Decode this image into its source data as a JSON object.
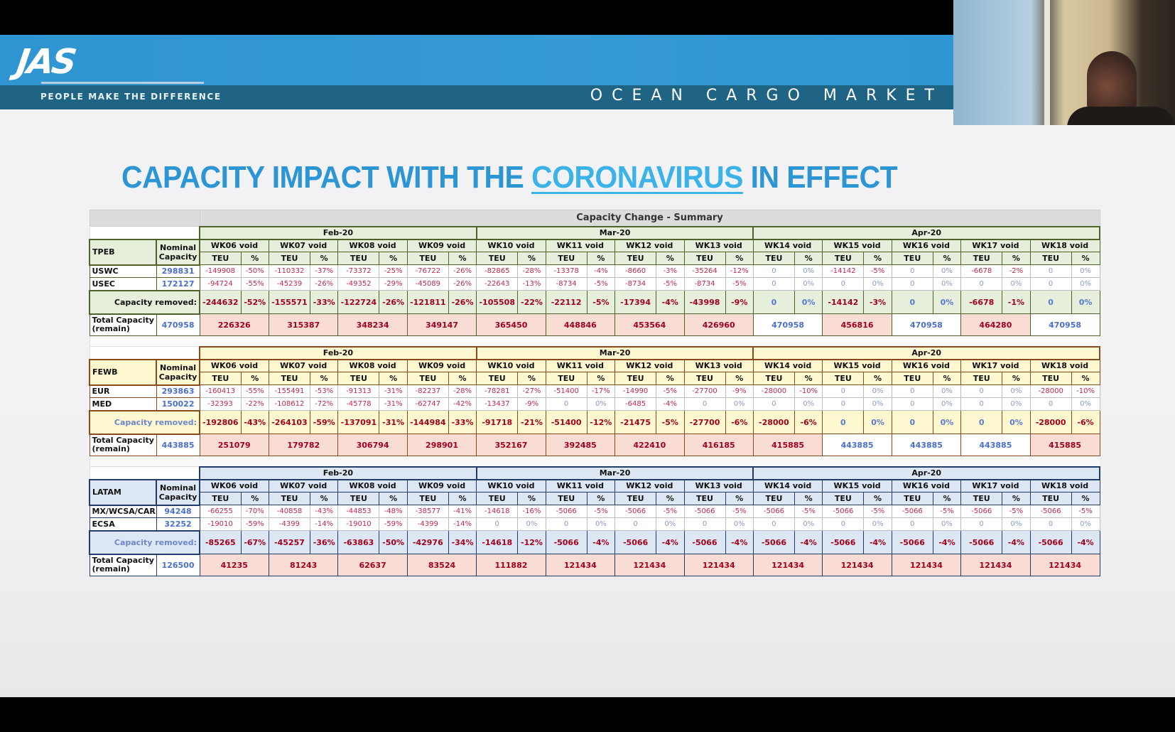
{
  "header": {
    "logo": "JAS",
    "tagline": "PEOPLE MAKE THE DIFFERENCE",
    "section_title": "OCEAN CARGO MARKET"
  },
  "slide": {
    "title_pre": "CAPACITY IMPACT WITH THE ",
    "title_highlight": "CORONAVIRUS",
    "title_post": " IN EFFECT"
  },
  "table": {
    "caption": "Capacity Change - Summary",
    "nominal_label": "Nominal Capacity",
    "removed_label": "Capacity removed:",
    "total_label": "Total Capacity (remain)",
    "teu_label": "TEU",
    "pct_label": "%",
    "months": [
      {
        "label": "Feb-20",
        "span": 4
      },
      {
        "label": "Mar-20",
        "span": 4
      },
      {
        "label": "Apr-20",
        "span": 5
      }
    ],
    "weeks": [
      "WK06 void",
      "WK07 void",
      "WK08 void",
      "WK09 void",
      "WK10 void",
      "WK11 void",
      "WK12 void",
      "WK13 void",
      "WK14 void",
      "WK15 void",
      "WK16 void",
      "WK17 void",
      "WK18 void"
    ],
    "sections": [
      {
        "name": "TPEB",
        "colors": {
          "bg": "#e6efdc",
          "border": "#4f6228",
          "removed_label": "#111111"
        },
        "rows": [
          {
            "label": "USWC",
            "nominal": "298831",
            "teu": [
              "-149908",
              "-110332",
              "-73372",
              "-76722",
              "-82865",
              "-13378",
              "-8660",
              "-35264",
              "0",
              "-14142",
              "0",
              "-6678",
              "0"
            ],
            "pct": [
              "-50%",
              "-37%",
              "-25%",
              "-26%",
              "-28%",
              "-4%",
              "-3%",
              "-12%",
              "0%",
              "-5%",
              "0%",
              "-2%",
              "0%"
            ]
          },
          {
            "label": "USEC",
            "nominal": "172127",
            "teu": [
              "-94724",
              "-45239",
              "-49352",
              "-45089",
              "-22643",
              "-8734",
              "-8734",
              "-8734",
              "0",
              "0",
              "0",
              "0",
              "0"
            ],
            "pct": [
              "-55%",
              "-26%",
              "-29%",
              "-26%",
              "-13%",
              "-5%",
              "-5%",
              "-5%",
              "0%",
              "0%",
              "0%",
              "0%",
              "0%"
            ]
          }
        ],
        "removed": {
          "teu": [
            "-244632",
            "-155571",
            "-122724",
            "-121811",
            "-105508",
            "-22112",
            "-17394",
            "-43998",
            "0",
            "-14142",
            "0",
            "-6678",
            "0"
          ],
          "pct": [
            "-52%",
            "-33%",
            "-26%",
            "-26%",
            "-22%",
            "-5%",
            "-4%",
            "-9%",
            "0%",
            "-3%",
            "0%",
            "-1%",
            "0%"
          ]
        },
        "total": {
          "nominal": "470958",
          "values": [
            "226326",
            "315387",
            "348234",
            "349147",
            "365450",
            "448846",
            "453564",
            "426960",
            "470958",
            "456816",
            "470958",
            "464280",
            "470958"
          ]
        }
      },
      {
        "name": "FEWB",
        "colors": {
          "bg": "#fdf8cf",
          "border": "#8a4a1c",
          "removed_label": "#6f86cc"
        },
        "rows": [
          {
            "label": "EUR",
            "nominal": "293863",
            "teu": [
              "-160413",
              "-155491",
              "-91313",
              "-82237",
              "-78281",
              "-51400",
              "-14990",
              "-27700",
              "-28000",
              "0",
              "0",
              "0",
              "-28000"
            ],
            "pct": [
              "-55%",
              "-53%",
              "-31%",
              "-28%",
              "-27%",
              "-17%",
              "-5%",
              "-9%",
              "-10%",
              "0%",
              "0%",
              "0%",
              "-10%"
            ]
          },
          {
            "label": "MED",
            "nominal": "150022",
            "teu": [
              "-32393",
              "-108612",
              "-45778",
              "-62747",
              "-13437",
              "0",
              "-6485",
              "0",
              "0",
              "0",
              "0",
              "0",
              "0"
            ],
            "pct": [
              "-22%",
              "-72%",
              "-31%",
              "-42%",
              "-9%",
              "0%",
              "-4%",
              "0%",
              "0%",
              "0%",
              "0%",
              "0%",
              "0%"
            ]
          }
        ],
        "removed": {
          "teu": [
            "-192806",
            "-264103",
            "-137091",
            "-144984",
            "-91718",
            "-51400",
            "-21475",
            "-27700",
            "-28000",
            "0",
            "0",
            "0",
            "-28000"
          ],
          "pct": [
            "-43%",
            "-59%",
            "-31%",
            "-33%",
            "-21%",
            "-12%",
            "-5%",
            "-6%",
            "-6%",
            "0%",
            "0%",
            "0%",
            "-6%"
          ]
        },
        "total": {
          "nominal": "443885",
          "values": [
            "251079",
            "179782",
            "306794",
            "298901",
            "352167",
            "392485",
            "422410",
            "416185",
            "415885",
            "443885",
            "443885",
            "443885",
            "415885"
          ]
        }
      },
      {
        "name": "LATAM",
        "colors": {
          "bg": "#dde7f3",
          "border": "#243c6a",
          "removed_label": "#6f86cc"
        },
        "rows": [
          {
            "label": "MX/WCSA/CAR",
            "nominal": "94248",
            "teu": [
              "-66255",
              "-40858",
              "-44853",
              "-38577",
              "-14618",
              "-5066",
              "-5066",
              "-5066",
              "-5066",
              "-5066",
              "-5066",
              "-5066",
              "-5066"
            ],
            "pct": [
              "-70%",
              "-43%",
              "-48%",
              "-41%",
              "-16%",
              "-5%",
              "-5%",
              "-5%",
              "-5%",
              "-5%",
              "-5%",
              "-5%",
              "-5%"
            ]
          },
          {
            "label": "ECSA",
            "nominal": "32252",
            "teu": [
              "-19010",
              "-4399",
              "-19010",
              "-4399",
              "0",
              "0",
              "0",
              "0",
              "0",
              "0",
              "0",
              "0",
              "0"
            ],
            "pct": [
              "-59%",
              "-14%",
              "-59%",
              "-14%",
              "0%",
              "0%",
              "0%",
              "0%",
              "0%",
              "0%",
              "0%",
              "0%",
              "0%"
            ]
          }
        ],
        "removed": {
          "teu": [
            "-85265",
            "-45257",
            "-63863",
            "-42976",
            "-14618",
            "-5066",
            "-5066",
            "-5066",
            "-5066",
            "-5066",
            "-5066",
            "-5066",
            "-5066"
          ],
          "pct": [
            "-67%",
            "-36%",
            "-50%",
            "-34%",
            "-12%",
            "-4%",
            "-4%",
            "-4%",
            "-4%",
            "-4%",
            "-4%",
            "-4%",
            "-4%"
          ]
        },
        "total": {
          "nominal": "126500",
          "values": [
            "41235",
            "81243",
            "62637",
            "83524",
            "111882",
            "121434",
            "121434",
            "121434",
            "121434",
            "121434",
            "121434",
            "121434",
            "121434"
          ]
        }
      }
    ]
  }
}
